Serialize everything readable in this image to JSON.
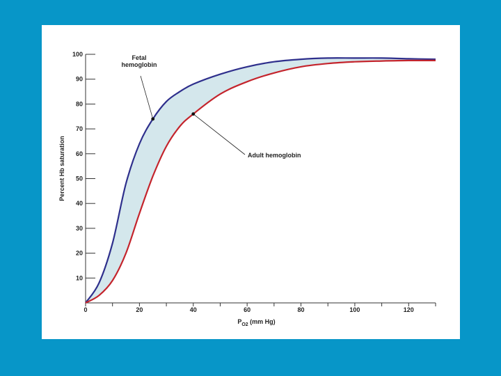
{
  "colors": {
    "background": "#0796c8",
    "panel": "#ffffff",
    "fetal_curve": "#2e2f8c",
    "adult_curve": "#c4242c",
    "fill_between": "#d4e7ec",
    "axis": "#333333"
  },
  "chart_data": {
    "type": "line",
    "xlabel": "PO2 (mm Hg)",
    "ylabel": "Percent Hb saturation",
    "xlim": [
      0,
      130
    ],
    "ylim": [
      0,
      100
    ],
    "x_ticks": [
      0,
      20,
      40,
      60,
      80,
      100,
      120
    ],
    "x_minor_ticks": [
      10,
      30,
      50,
      70,
      90,
      110,
      130
    ],
    "y_ticks": [
      10,
      20,
      30,
      40,
      50,
      60,
      70,
      80,
      90,
      100
    ],
    "grid": false,
    "fill_between_series": true,
    "series": [
      {
        "name": "Fetal hemoglobin",
        "color": "#2e2f8c",
        "x": [
          0,
          5,
          10,
          15,
          20,
          25,
          30,
          35,
          40,
          50,
          60,
          70,
          80,
          90,
          100,
          110,
          120,
          130
        ],
        "y": [
          0,
          8,
          24,
          48,
          64,
          74,
          81,
          85,
          88,
          92,
          95,
          97,
          98,
          98.5,
          98.5,
          98.5,
          98.2,
          98
        ]
      },
      {
        "name": "Adult hemoglobin",
        "color": "#c4242c",
        "x": [
          0,
          5,
          10,
          15,
          20,
          25,
          30,
          35,
          40,
          50,
          60,
          70,
          80,
          90,
          100,
          110,
          120,
          130
        ],
        "y": [
          0,
          3,
          9,
          20,
          36,
          51,
          63,
          71,
          76,
          84,
          89,
          92.5,
          95,
          96.3,
          97,
          97.3,
          97.5,
          97.5
        ]
      }
    ],
    "annotations": [
      {
        "text_lines": [
          "Fetal",
          "hemoglobin"
        ],
        "series": "Fetal hemoglobin",
        "point": [
          25,
          74
        ],
        "position": "upper-left"
      },
      {
        "text_lines": [
          "Adult hemoglobin"
        ],
        "series": "Adult hemoglobin",
        "point": [
          40,
          76
        ],
        "position": "lower-right"
      }
    ]
  }
}
